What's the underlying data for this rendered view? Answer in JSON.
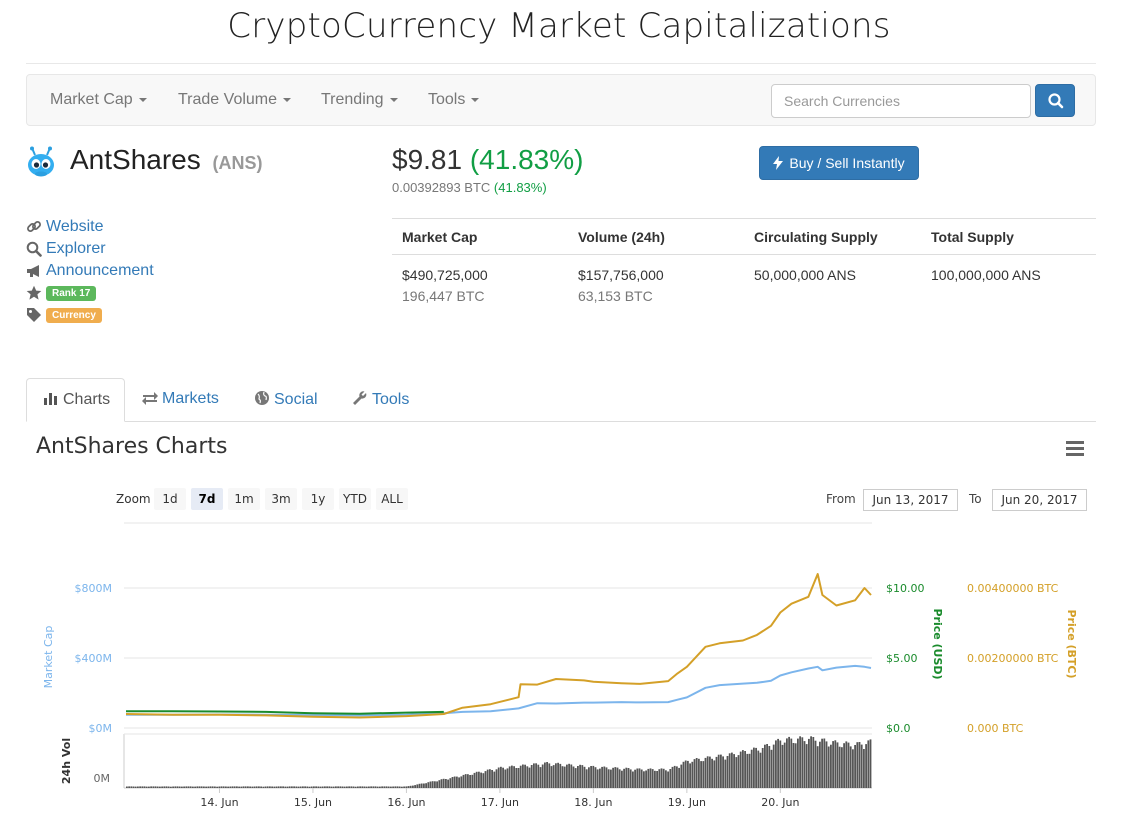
{
  "site": {
    "title": "CryptoCurrency Market Capitalizations"
  },
  "nav": {
    "items": [
      {
        "label": "Market Cap"
      },
      {
        "label": "Trade Volume"
      },
      {
        "label": "Trending"
      },
      {
        "label": "Tools"
      }
    ],
    "search_placeholder": "Search Currencies"
  },
  "coin": {
    "name": "AntShares",
    "symbol": "(ANS)",
    "price_usd": "$9.81",
    "change_usd": "(41.83%)",
    "price_btc": "0.00392893 BTC",
    "change_btc": "(41.83%)",
    "buy_label": "Buy / Sell Instantly"
  },
  "links": {
    "website": "Website",
    "explorer": "Explorer",
    "announcement": "Announcement",
    "rank": "Rank 17",
    "tag": "Currency"
  },
  "stats": {
    "headers": [
      "Market Cap",
      "Volume (24h)",
      "Circulating Supply",
      "Total Supply"
    ],
    "market_cap_usd": "$490,725,000",
    "market_cap_btc": "196,447 BTC",
    "volume_usd": "$157,756,000",
    "volume_btc": "63,153 BTC",
    "circulating": "50,000,000 ANS",
    "total": "100,000,000 ANS"
  },
  "tabs": [
    {
      "label": "Charts",
      "active": true
    },
    {
      "label": "Markets",
      "active": false
    },
    {
      "label": "Social",
      "active": false
    },
    {
      "label": "Tools",
      "active": false
    }
  ],
  "chart_header": {
    "title": "AntShares Charts",
    "zoom_label": "Zoom",
    "zoom_options": [
      "1d",
      "7d",
      "1m",
      "3m",
      "1y",
      "YTD",
      "ALL"
    ],
    "zoom_selected": "7d",
    "from_label": "From",
    "from_date": "Jun 13, 2017",
    "to_label": "To",
    "to_date": "Jun 20, 2017"
  },
  "chart_data": {
    "type": "line",
    "x_ticks": [
      "14. Jun",
      "15. Jun",
      "16. Jun",
      "17. Jun",
      "18. Jun",
      "19. Jun",
      "20. Jun"
    ],
    "axes": {
      "market_cap": {
        "label": "Market Cap",
        "ticks": [
          "$0M",
          "$400M",
          "$800M"
        ],
        "range": [
          0,
          800
        ],
        "color": "#7cb5ec"
      },
      "price_usd": {
        "label": "Price (USD)",
        "ticks": [
          "$0.0",
          "$5.00",
          "$10.00"
        ],
        "range": [
          0,
          10
        ],
        "color": "#1a8b2c"
      },
      "price_btc": {
        "label": "Price (BTC)",
        "ticks": [
          "0.000 BTC",
          "0.00200000 BTC",
          "0.00400000 BTC"
        ],
        "range": [
          0,
          0.004
        ],
        "color": "#d4a028"
      },
      "volume": {
        "label": "24h Vol",
        "ticks": [
          "0M"
        ]
      }
    },
    "series": [
      {
        "name": "Market Cap",
        "color": "#7cb5ec",
        "points": [
          [
            13.0,
            76
          ],
          [
            13.5,
            76
          ],
          [
            14.0,
            77
          ],
          [
            14.5,
            76
          ],
          [
            15.0,
            74
          ],
          [
            15.5,
            72
          ],
          [
            16.0,
            76
          ],
          [
            16.4,
            84
          ],
          [
            16.6,
            92
          ],
          [
            16.9,
            96
          ],
          [
            17.2,
            112
          ],
          [
            17.4,
            142
          ],
          [
            17.6,
            140
          ],
          [
            17.9,
            145
          ],
          [
            18.0,
            145
          ],
          [
            18.3,
            148
          ],
          [
            18.5,
            146
          ],
          [
            18.8,
            148
          ],
          [
            18.9,
            162
          ],
          [
            19.0,
            175
          ],
          [
            19.2,
            230
          ],
          [
            19.35,
            245
          ],
          [
            19.6,
            254
          ],
          [
            19.75,
            258
          ],
          [
            19.9,
            270
          ],
          [
            20.0,
            300
          ],
          [
            20.12,
            318
          ],
          [
            20.3,
            340
          ],
          [
            20.4,
            350
          ],
          [
            20.45,
            330
          ],
          [
            20.6,
            345
          ],
          [
            20.8,
            355
          ],
          [
            20.9,
            350
          ],
          [
            20.97,
            343
          ]
        ]
      },
      {
        "name": "Price (USD)",
        "color": "#1a8b2c",
        "points": [
          [
            13.0,
            1.2
          ],
          [
            13.5,
            1.2
          ],
          [
            14.0,
            1.18
          ],
          [
            14.5,
            1.15
          ],
          [
            15.0,
            1.05
          ],
          [
            15.5,
            1.02
          ],
          [
            16.0,
            1.1
          ],
          [
            16.4,
            1.15
          ]
        ]
      },
      {
        "name": "Price (BTC)",
        "color": "#d4a028",
        "points": [
          [
            13.0,
            0.0004
          ],
          [
            13.5,
            0.00038
          ],
          [
            14.0,
            0.00038
          ],
          [
            14.5,
            0.00036
          ],
          [
            15.0,
            0.00032
          ],
          [
            15.5,
            0.0003
          ],
          [
            16.0,
            0.00034
          ],
          [
            16.4,
            0.0004
          ],
          [
            16.6,
            0.00058
          ],
          [
            16.9,
            0.00068
          ],
          [
            17.2,
            0.00088
          ],
          [
            17.22,
            0.00125
          ],
          [
            17.4,
            0.00124
          ],
          [
            17.6,
            0.0014
          ],
          [
            17.9,
            0.00136
          ],
          [
            18.0,
            0.00132
          ],
          [
            18.3,
            0.00128
          ],
          [
            18.5,
            0.00126
          ],
          [
            18.8,
            0.00134
          ],
          [
            18.9,
            0.00156
          ],
          [
            19.0,
            0.00175
          ],
          [
            19.2,
            0.00232
          ],
          [
            19.35,
            0.00242
          ],
          [
            19.6,
            0.0025
          ],
          [
            19.75,
            0.00266
          ],
          [
            19.9,
            0.00292
          ],
          [
            20.0,
            0.0033
          ],
          [
            20.12,
            0.00355
          ],
          [
            20.3,
            0.00375
          ],
          [
            20.4,
            0.0044
          ],
          [
            20.45,
            0.0038
          ],
          [
            20.6,
            0.0035
          ],
          [
            20.8,
            0.00365
          ],
          [
            20.9,
            0.004
          ],
          [
            20.97,
            0.0038
          ]
        ]
      },
      {
        "name": "24h Vol",
        "color": "#555555",
        "points": [
          [
            13.0,
            2
          ],
          [
            16.0,
            2
          ],
          [
            16.5,
            14
          ],
          [
            17.0,
            26
          ],
          [
            17.5,
            32
          ],
          [
            18.0,
            27
          ],
          [
            18.5,
            24
          ],
          [
            18.8,
            24
          ],
          [
            19.0,
            35
          ],
          [
            19.5,
            44
          ],
          [
            19.8,
            52
          ],
          [
            20.0,
            62
          ],
          [
            20.3,
            64
          ],
          [
            20.6,
            58
          ],
          [
            20.8,
            56
          ],
          [
            20.97,
            60
          ]
        ]
      }
    ]
  }
}
